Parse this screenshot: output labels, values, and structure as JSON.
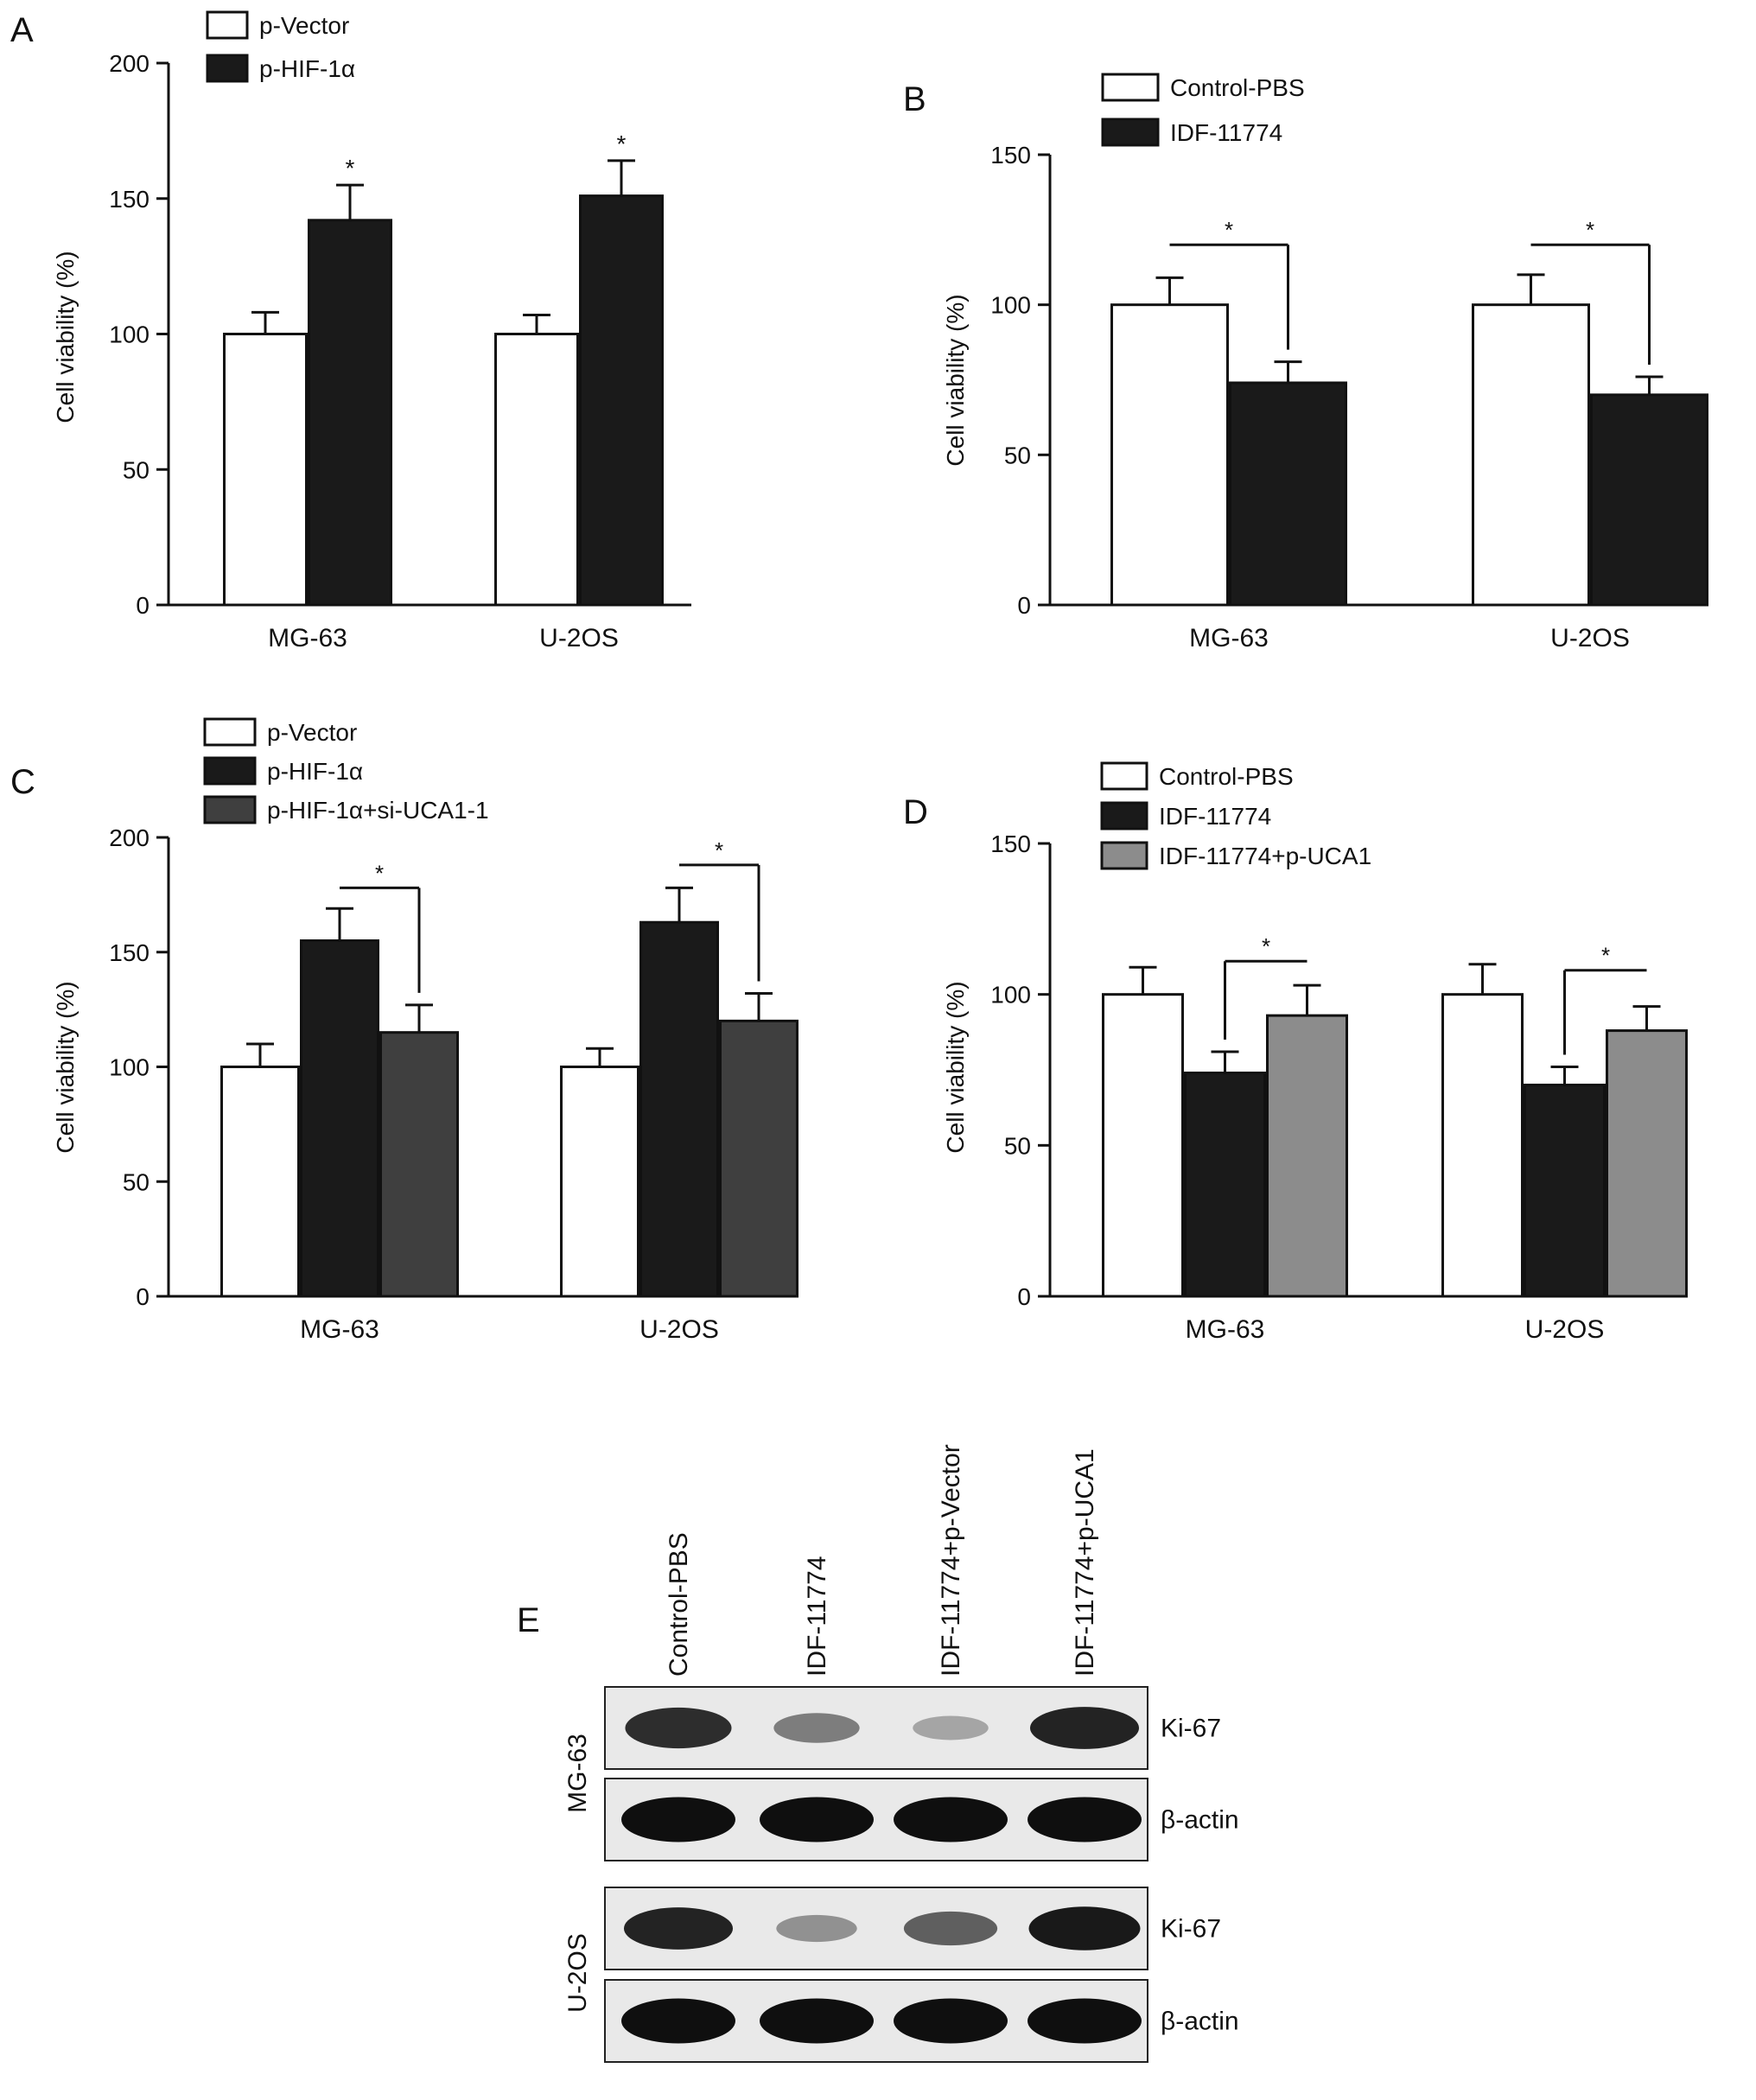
{
  "panels": {
    "A": {
      "letter": "A",
      "chart_data": {
        "type": "bar",
        "categories": [
          "MG-63",
          "U-2OS"
        ],
        "series": [
          {
            "name": "p-Vector",
            "values": [
              100,
              100
            ],
            "errors": [
              8,
              7
            ],
            "color": "#ffffff"
          },
          {
            "name": "p-HIF-1α",
            "values": [
              142,
              151
            ],
            "errors": [
              13,
              13
            ],
            "color": "#1a1a1a"
          }
        ],
        "ylabel": "Cell viability (%)",
        "ylim": [
          0,
          200
        ],
        "yticks": [
          0,
          50,
          100,
          150,
          200
        ],
        "grid": false,
        "legend": "top-left",
        "annotations": [
          {
            "text": "*",
            "category": 0,
            "style": "star",
            "target": 1
          },
          {
            "text": "*",
            "category": 1,
            "style": "star",
            "target": 1
          }
        ]
      }
    },
    "B": {
      "letter": "B",
      "chart_data": {
        "type": "bar",
        "categories": [
          "MG-63",
          "U-2OS"
        ],
        "series": [
          {
            "name": "Control-PBS",
            "values": [
              100,
              100
            ],
            "errors": [
              9,
              10
            ],
            "color": "#ffffff"
          },
          {
            "name": "IDF-11774",
            "values": [
              74,
              70
            ],
            "errors": [
              7,
              6
            ],
            "color": "#1a1a1a"
          }
        ],
        "ylabel": "Cell viability (%)",
        "ylim": [
          0,
          150
        ],
        "yticks": [
          0,
          50,
          100,
          150
        ],
        "grid": false,
        "legend": "top-center",
        "annotations": [
          {
            "text": "*",
            "category": 0,
            "style": "bracket",
            "from": 0,
            "to": 1,
            "level": 120
          },
          {
            "text": "*",
            "category": 1,
            "style": "bracket",
            "from": 0,
            "to": 1,
            "level": 120
          }
        ]
      }
    },
    "C": {
      "letter": "C",
      "chart_data": {
        "type": "bar",
        "categories": [
          "MG-63",
          "U-2OS"
        ],
        "series": [
          {
            "name": "p-Vector",
            "values": [
              100,
              100
            ],
            "errors": [
              10,
              8
            ],
            "color": "#ffffff"
          },
          {
            "name": "p-HIF-1α",
            "values": [
              155,
              163
            ],
            "errors": [
              14,
              15
            ],
            "color": "#1a1a1a"
          },
          {
            "name": "p-HIF-1α+si-UCA1-1",
            "values": [
              115,
              120
            ],
            "errors": [
              12,
              12
            ],
            "color": "#3f3f3f"
          }
        ],
        "ylabel": "Cell viability (%)",
        "ylim": [
          0,
          200
        ],
        "yticks": [
          0,
          50,
          100,
          150,
          200
        ],
        "grid": false,
        "legend": "top-left",
        "annotations": [
          {
            "text": "*",
            "category": 0,
            "style": "bracket",
            "from": 1,
            "to": 2,
            "level": 178
          },
          {
            "text": "*",
            "category": 1,
            "style": "bracket",
            "from": 1,
            "to": 2,
            "level": 188
          }
        ]
      }
    },
    "D": {
      "letter": "D",
      "chart_data": {
        "type": "bar",
        "categories": [
          "MG-63",
          "U-2OS"
        ],
        "series": [
          {
            "name": "Control-PBS",
            "values": [
              100,
              100
            ],
            "errors": [
              9,
              10
            ],
            "color": "#ffffff"
          },
          {
            "name": "IDF-11774",
            "values": [
              74,
              70
            ],
            "errors": [
              7,
              6
            ],
            "color": "#1a1a1a"
          },
          {
            "name": "IDF-11774+p-UCA1",
            "values": [
              93,
              88
            ],
            "errors": [
              10,
              8
            ],
            "color": "#8c8c8c"
          }
        ],
        "ylabel": "Cell viability (%)",
        "ylim": [
          0,
          150
        ],
        "yticks": [
          0,
          50,
          100,
          150
        ],
        "grid": false,
        "legend": "top-left",
        "annotations": [
          {
            "text": "*",
            "category": 0,
            "style": "bracket-down",
            "from": 1,
            "to": 2,
            "level": 111
          },
          {
            "text": "*",
            "category": 1,
            "style": "bracket-down",
            "from": 1,
            "to": 2,
            "level": 108
          }
        ]
      }
    },
    "E": {
      "letter": "E",
      "lanes": [
        "Control-PBS",
        "IDF-11774",
        "IDF-11774+p-Vector",
        "IDF-11774+p-UCA1"
      ],
      "cell_lines": [
        "MG-63",
        "U-2OS"
      ],
      "proteins": [
        "Ki-67",
        "β-actin"
      ],
      "band_intensity": {
        "MG-63": {
          "Ki-67": [
            0.85,
            0.45,
            0.25,
            0.9
          ],
          "β-actin": [
            1,
            1,
            1,
            1
          ]
        },
        "U-2OS": {
          "Ki-67": [
            0.9,
            0.35,
            0.6,
            0.95
          ],
          "β-actin": [
            1,
            1,
            1,
            1
          ]
        }
      }
    }
  }
}
